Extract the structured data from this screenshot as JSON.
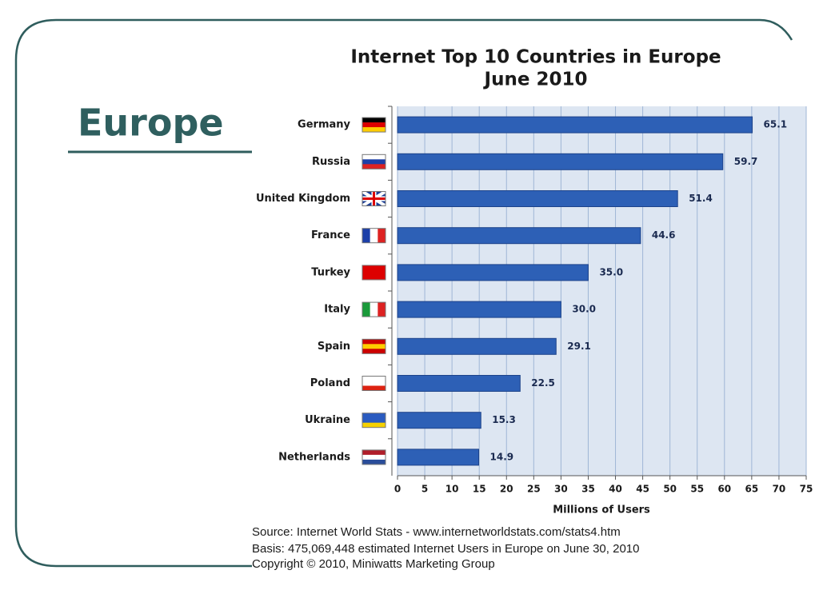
{
  "heading": "Europe",
  "chart_data": {
    "type": "bar",
    "orientation": "horizontal",
    "title": "Internet Top 10 Countries in Europe",
    "subtitle": "June 2010",
    "categories": [
      "Germany",
      "Russia",
      "United Kingdom",
      "France",
      "Turkey",
      "Italy",
      "Spain",
      "Poland",
      "Ukraine",
      "Netherlands"
    ],
    "values": [
      65.1,
      59.7,
      51.4,
      44.6,
      35,
      30,
      29.1,
      22.5,
      15.3,
      14.9
    ],
    "value_labels": [
      "65.1",
      "59.7",
      "51.4",
      "44.6",
      "35.0",
      "30.0",
      "29.1",
      "22.5",
      "15.3",
      "14.9"
    ],
    "color": "#2d60b6",
    "xlim": [
      0,
      75
    ],
    "xticks": [
      0,
      5,
      10,
      15,
      20,
      25,
      30,
      35,
      40,
      45,
      50,
      55,
      60,
      65,
      70,
      75
    ],
    "xlabel": "Millions of Users",
    "grid": true
  },
  "notes": [
    "Source: Internet World Stats  -  www.internetworldstats.com/stats4.htm",
    "Basis: 475,069,448 estimated Internet  Users in Europe on June 30, 2010",
    "Copyright © 2010, Miniwatts Marketing Group"
  ]
}
